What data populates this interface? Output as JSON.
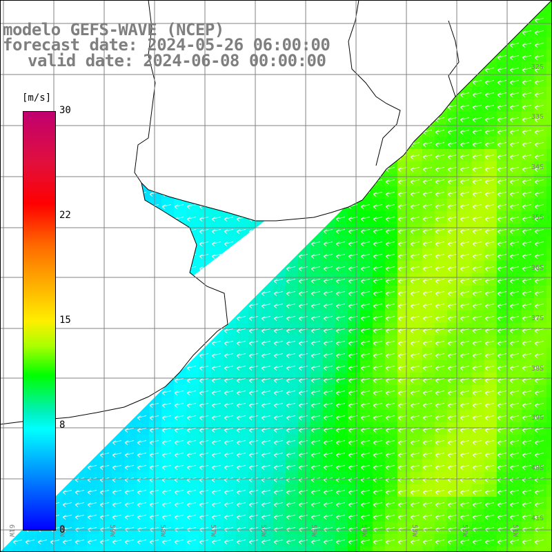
{
  "title": {
    "line1": "modelo GEFS-WAVE (NCEP)",
    "line2": "forecast date: 2024-05-26 06:00:00",
    "line3": "valid date: 2024-06-08 00:00:00"
  },
  "colorbar": {
    "units": "[m/s]",
    "ticks": [
      "30",
      "22",
      "15",
      "8",
      "0"
    ],
    "tick_values": [
      30,
      22,
      15,
      8,
      0
    ],
    "range": [
      0,
      30
    ],
    "colors": [
      "#c0006f",
      "#ff0000",
      "#ff6a00",
      "#ffee00",
      "#00ff00",
      "#00ffff",
      "#0000ff"
    ]
  },
  "axes": {
    "lat_labels": [
      "32S",
      "33S",
      "34S",
      "35S",
      "36S",
      "37S",
      "38S",
      "39S",
      "40S",
      "41S"
    ],
    "lon_labels": [
      "61W",
      "60W",
      "59W",
      "58W",
      "57W",
      "56W",
      "55W",
      "54W",
      "53W",
      "52W",
      "51W"
    ]
  },
  "field": {
    "variable": "wind speed",
    "units": "m/s",
    "wind_direction": "from east-northeast",
    "coast_speed": 7,
    "offshore_speed": 14
  },
  "colors": {
    "land": "#ffffff",
    "coastline": "#000000",
    "grid": "#808080",
    "arrows": "#ffffff",
    "title_text": "#7f7f7f"
  }
}
